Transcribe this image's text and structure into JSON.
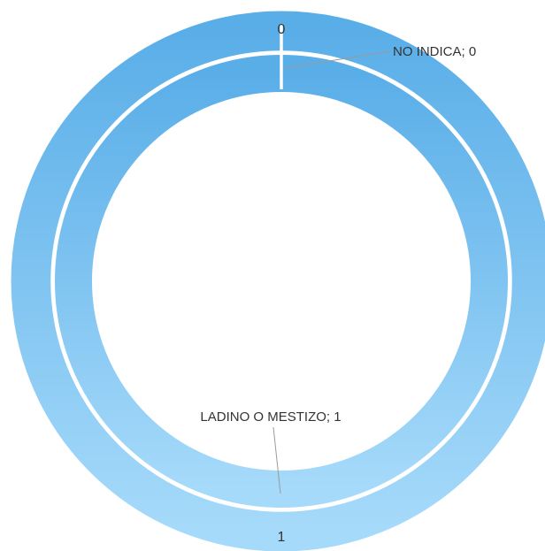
{
  "chart_data": {
    "type": "donut",
    "title": "",
    "series": [
      {
        "ring": "outer",
        "categories": [
          "NO INDICA",
          "LADINO O MESTIZO"
        ],
        "values": [
          0,
          1
        ],
        "value_labels": [
          "0",
          "1"
        ]
      },
      {
        "ring": "inner",
        "categories": [
          "NO INDICA",
          "LADINO O MESTIZO"
        ],
        "values": [
          0,
          1
        ],
        "data_labels": [
          "NO INDICA; 0",
          "LADINO O MESTIZO; 1"
        ]
      }
    ],
    "colors": {
      "ring_top": "#5aaee8",
      "ring_bottom": "#a6dafa",
      "separator": "#ffffff",
      "leader_line": "#9a9a9a",
      "text": "#333333"
    },
    "legend": "none"
  }
}
